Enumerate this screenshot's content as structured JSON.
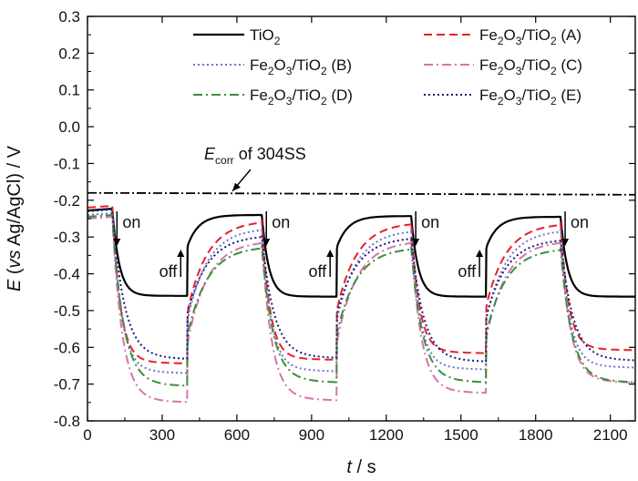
{
  "chart_data": {
    "type": "line",
    "xlabel_italic": "t",
    "xlabel_rest": " / s",
    "ylabel_italic_E": "E",
    "ylabel_open": " (",
    "ylabel_italic_vs": "vs",
    "ylabel_rest": " Ag/AgCl) / V",
    "xlim": [
      0,
      2200
    ],
    "ylim": [
      -0.8,
      0.3
    ],
    "x_ticks": [
      "0",
      "300",
      "600",
      "900",
      "1200",
      "1500",
      "1800",
      "2100"
    ],
    "y_ticks": [
      "0.3",
      "0.2",
      "0.1",
      "0.0",
      "-0.1",
      "-0.2",
      "-0.3",
      "-0.4",
      "-0.5",
      "-0.6",
      "-0.7",
      "-0.8"
    ],
    "legend_placement": "top",
    "legend": [
      {
        "base": "TiO",
        "sub": "2",
        "tail": ""
      },
      {
        "base": "Fe",
        "sub": "2",
        "mid": "O",
        "sub2": "3",
        "mid2": "/TiO",
        "sub3": "2",
        "tail": " (A)"
      },
      {
        "base": "Fe",
        "sub": "2",
        "mid": "O",
        "sub2": "3",
        "mid2": "/TiO",
        "sub3": "2",
        "tail": " (B)"
      },
      {
        "base": "Fe",
        "sub": "2",
        "mid": "O",
        "sub2": "3",
        "mid2": "/TiO",
        "sub3": "2",
        "tail": " (C)"
      },
      {
        "base": "Fe",
        "sub": "2",
        "mid": "O",
        "sub2": "3",
        "mid2": "/TiO",
        "sub3": "2",
        "tail": " (D)"
      },
      {
        "base": "Fe",
        "sub": "2",
        "mid": "O",
        "sub2": "3",
        "mid2": "/TiO",
        "sub3": "2",
        "tail": " (E)"
      }
    ],
    "series": [
      {
        "name": "TiO2",
        "color": "#000000",
        "dash": "solid",
        "width": 2.2,
        "off_start": -0.228,
        "light_final": [
          -0.46,
          -0.462,
          -0.462,
          -0.462
        ],
        "dark_final": [
          -0.24,
          -0.243,
          -0.245
        ]
      },
      {
        "name": "Fe2O3/TiO2 (A)",
        "color": "#e8202a",
        "dash": "dash",
        "width": 2,
        "off_start": -0.22,
        "light_final": [
          -0.64,
          -0.63,
          -0.612,
          -0.604
        ],
        "dark_final": [
          -0.255,
          -0.26,
          -0.262
        ]
      },
      {
        "name": "Fe2O3/TiO2 (B)",
        "color": "#6f74c6",
        "dash": "dot",
        "width": 2,
        "off_start": -0.24,
        "light_final": [
          -0.665,
          -0.66,
          -0.655,
          -0.65
        ],
        "dark_final": [
          -0.275,
          -0.28,
          -0.28
        ]
      },
      {
        "name": "Fe2O3/TiO2 (C)",
        "color": "#d873ad",
        "dash": "dashdot",
        "width": 2,
        "off_start": -0.25,
        "light_final": [
          -0.745,
          -0.74,
          -0.72,
          -0.692
        ],
        "dark_final": [
          -0.31,
          -0.31,
          -0.31
        ]
      },
      {
        "name": "Fe2O3/TiO2 (D)",
        "color": "#3a8f3a",
        "dash": "dashdot",
        "width": 2,
        "off_start": -0.245,
        "light_final": [
          -0.7,
          -0.69,
          -0.69,
          -0.69
        ],
        "dark_final": [
          -0.325,
          -0.328,
          -0.33
        ]
      },
      {
        "name": "Fe2O3/TiO2 (E)",
        "color": "#1a1a7a",
        "dash": "dot",
        "width": 2,
        "off_start": -0.23,
        "light_final": [
          -0.628,
          -0.625,
          -0.635,
          -0.632
        ],
        "dark_final": [
          -0.295,
          -0.3,
          -0.305
        ]
      }
    ],
    "light_on": [
      100,
      700,
      1300,
      1900
    ],
    "light_off": [
      400,
      1000,
      1600
    ],
    "reference_line": {
      "y": -0.18,
      "label_italic": "E",
      "label_sub": "corr",
      "label_rest": " of 304SS"
    },
    "annotations": {
      "on": "on",
      "off": "off",
      "on_x": [
        100,
        700,
        1300,
        1900
      ],
      "off_x": [
        400,
        1000,
        1600
      ]
    }
  }
}
